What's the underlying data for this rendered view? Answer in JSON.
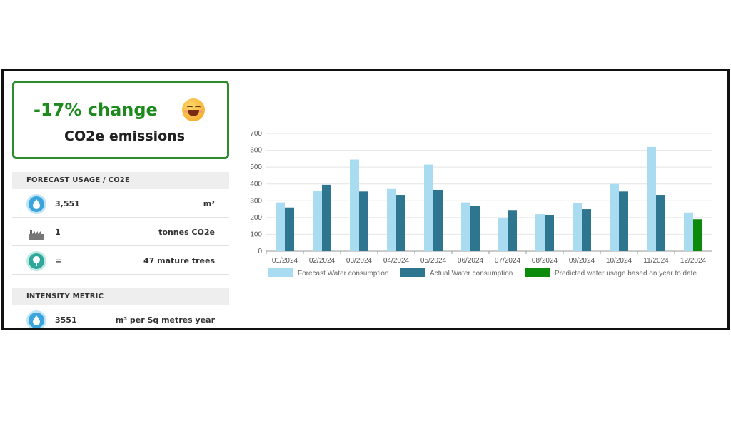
{
  "change_card": {
    "title": "-17% change",
    "subtitle": "CO2e emissions",
    "emoji_icon": "grinning-face-icon",
    "title_color": "#1e8a1e",
    "border_color": "#2e8b2e"
  },
  "forecast_section": {
    "header": "FORECAST USAGE / CO2E",
    "rows": [
      {
        "icon": "water-drop-icon",
        "value": "3,551",
        "unit": "m³"
      },
      {
        "icon": "factory-icon",
        "value": "1",
        "unit": "tonnes CO2e"
      },
      {
        "icon": "tree-icon",
        "value": "=",
        "unit": "47 mature trees"
      }
    ]
  },
  "intensity_section": {
    "header": "INTENSITY METRIC",
    "rows": [
      {
        "icon": "water-drop-icon",
        "value": "3551",
        "unit": "m³ per Sq metres year"
      }
    ]
  },
  "chart_data": {
    "type": "bar",
    "categories": [
      "01/2024",
      "02/2024",
      "03/2024",
      "04/2024",
      "05/2024",
      "06/2024",
      "07/2024",
      "08/2024",
      "09/2024",
      "10/2024",
      "11/2024",
      "12/2024"
    ],
    "series": [
      {
        "name": "Forecast Water consumption",
        "color": "#a9dcf0",
        "values": [
          290,
          360,
          545,
          370,
          515,
          290,
          195,
          220,
          285,
          400,
          620,
          230
        ]
      },
      {
        "name": "Actual Water consumption",
        "color": "#2e7590",
        "values": [
          260,
          395,
          355,
          335,
          365,
          270,
          245,
          215,
          250,
          355,
          335,
          20
        ]
      },
      {
        "name": "Predicted water usage based on year to date",
        "color": "#0b8a0b",
        "values": [
          null,
          null,
          null,
          null,
          null,
          null,
          null,
          null,
          null,
          null,
          null,
          190
        ]
      }
    ],
    "yticks": [
      0,
      100,
      200,
      300,
      400,
      500,
      600,
      700
    ],
    "ylim": [
      0,
      700
    ],
    "grid": true,
    "legend_position": "bottom"
  }
}
